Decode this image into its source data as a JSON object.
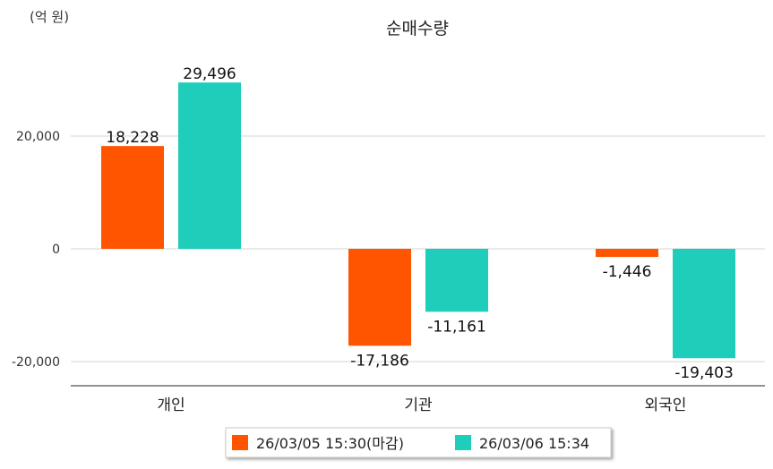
{
  "chart_data": {
    "type": "bar",
    "title": "순매수량",
    "unit_label": "(억 원)",
    "categories": [
      "개인",
      "기관",
      "외국인"
    ],
    "series": [
      {
        "name": "26/03/05 15:30(마감)",
        "color": "#ff5500",
        "values": [
          18228,
          -17186,
          -1446
        ],
        "labels": [
          "18,228",
          "-17,186",
          "-1,446"
        ]
      },
      {
        "name": "26/03/06 15:34",
        "color": "#1ecdba",
        "values": [
          29496,
          -11161,
          -19403
        ],
        "labels": [
          "29,496",
          "-11,161",
          "-19,403"
        ]
      }
    ],
    "y_ticks": [
      {
        "value": 20000,
        "label": "20,000"
      },
      {
        "value": 0,
        "label": "0"
      },
      {
        "value": -20000,
        "label": "-20,000"
      }
    ],
    "ylim": [
      -24000,
      30000
    ],
    "grid": true,
    "legend_position": "bottom-center"
  }
}
